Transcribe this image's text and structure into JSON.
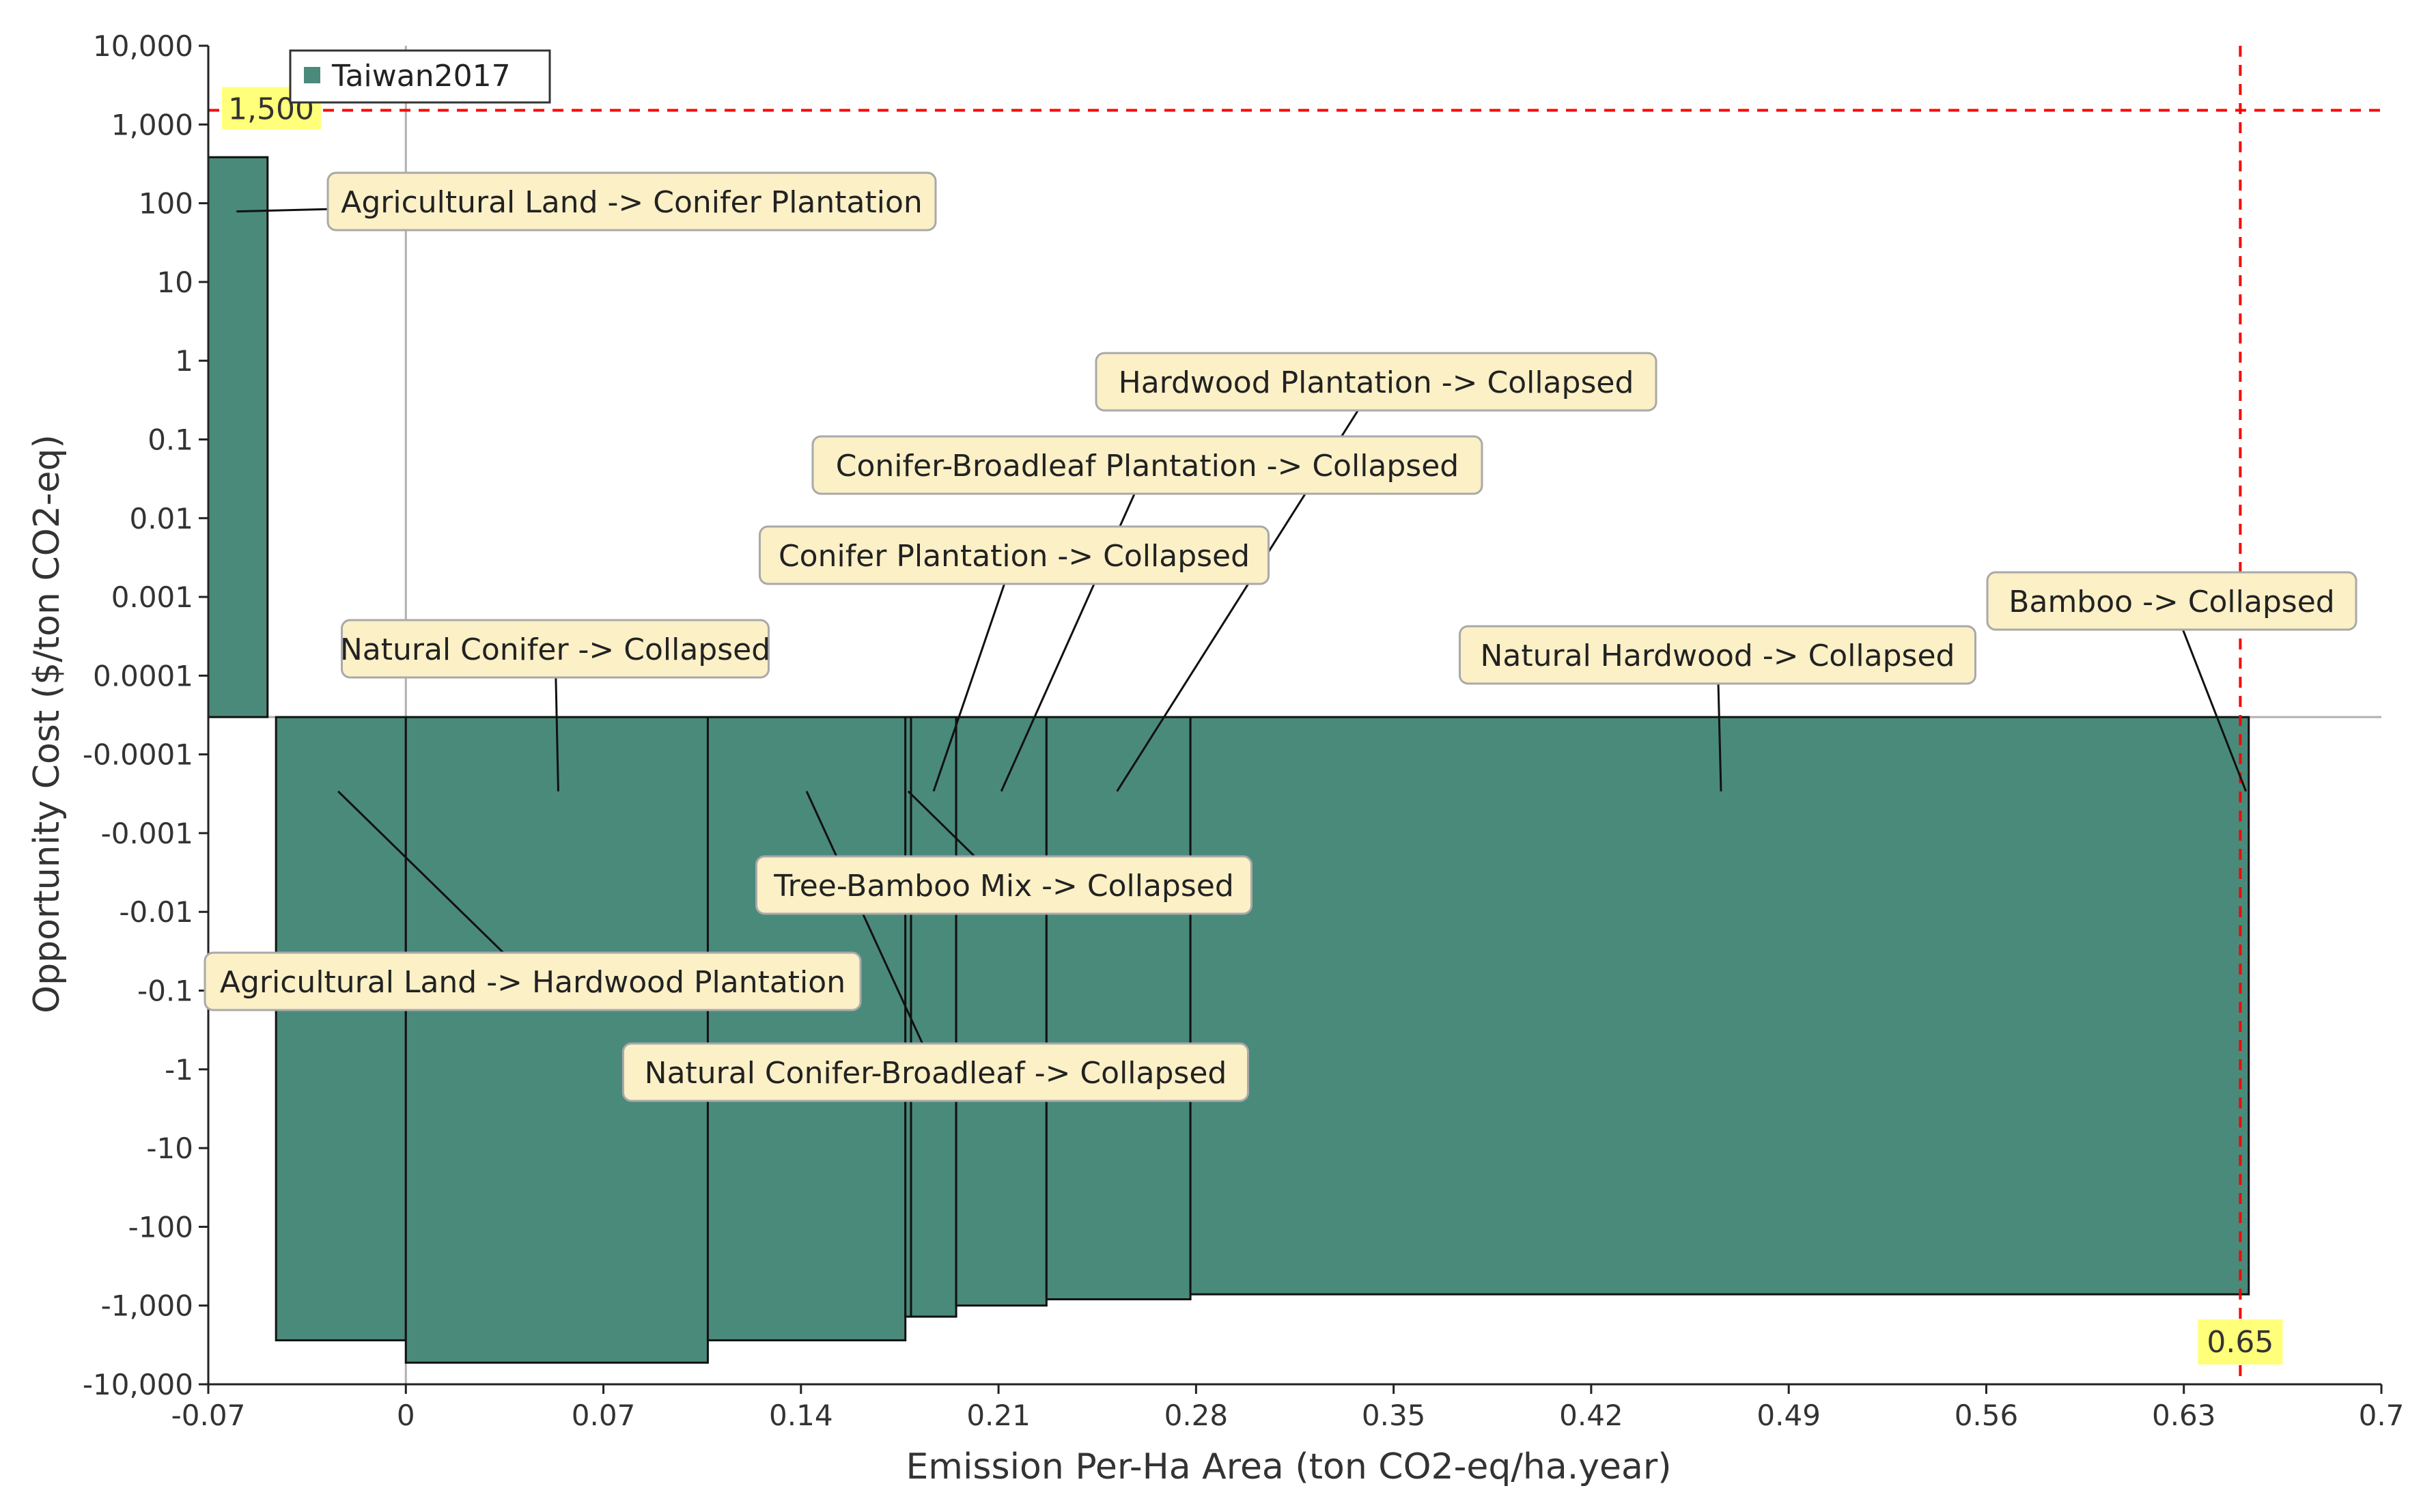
{
  "chart_data": {
    "type": "bar",
    "subtype": "variable-width cost curve (symlog y axis)",
    "xlabel": "Emission Per-Ha Area (ton CO2-eq/ha.year)",
    "ylabel": "Opportunity Cost ($/ton CO2-eq)",
    "xlim": [
      -0.07,
      0.7
    ],
    "x_ticks": [
      "-0.07",
      "0",
      "0.07",
      "0.14",
      "0.21",
      "0.28",
      "0.35",
      "0.42",
      "0.49",
      "0.56",
      "0.63",
      "0.7"
    ],
    "y_scale": "symlog",
    "y_ticks": [
      "10,000",
      "1,000",
      "100",
      "10",
      "1",
      "0.1",
      "0.01",
      "0.001",
      "0.0001",
      "-0.0001",
      "-0.001",
      "-0.01",
      "-0.1",
      "-1",
      "-10",
      "-100",
      "-1,000",
      "-10,000"
    ],
    "legend": {
      "position": "top-left",
      "entries": [
        "Taiwan2017"
      ]
    },
    "bar_color": "#4a8a7b",
    "series": [
      {
        "name": "Taiwan2017",
        "bars": [
          {
            "x0": -0.07,
            "x1": -0.049,
            "value": 350
          },
          {
            "x0": -0.046,
            "x1": 0.0,
            "value": -2500
          },
          {
            "x0": 0.0,
            "x1": 0.107,
            "value": -5000
          },
          {
            "x0": 0.107,
            "x1": 0.177,
            "value": -2500
          },
          {
            "x0": 0.177,
            "x1": 0.179,
            "value": -1200
          },
          {
            "x0": 0.179,
            "x1": 0.195,
            "value": -1200
          },
          {
            "x0": 0.195,
            "x1": 0.227,
            "value": -850
          },
          {
            "x0": 0.227,
            "x1": 0.278,
            "value": -700
          },
          {
            "x0": 0.278,
            "x1": 0.653,
            "value": -600
          }
        ]
      }
    ],
    "annotations": [
      {
        "text": "Agricultural Land -> Conifer Plantation",
        "point": [
          -0.06,
          65
        ]
      },
      {
        "text": "Natural Conifer -> Collapsed",
        "point": [
          0.054,
          -5e-05
        ]
      },
      {
        "text": "Agricultural Land -> Hardwood Plantation",
        "point": [
          -0.024,
          -3e-05
        ]
      },
      {
        "text": "Tree-Bamboo Mix -> Collapsed",
        "point": [
          0.178,
          -4e-05
        ]
      },
      {
        "text": "Natural Conifer-Broadleaf -> Collapsed",
        "point": [
          0.142,
          -4e-05
        ]
      },
      {
        "text": "Conifer Plantation -> Collapsed",
        "point": [
          0.187,
          -4e-05
        ]
      },
      {
        "text": "Conifer-Broadleaf Plantation -> Collapsed",
        "point": [
          0.211,
          -4e-05
        ]
      },
      {
        "text": "Hardwood Plantation -> Collapsed",
        "point": [
          0.252,
          -4e-05
        ]
      },
      {
        "text": "Natural Hardwood -> Collapsed",
        "point": [
          0.466,
          -4e-05
        ]
      },
      {
        "text": "Bamboo -> Collapsed",
        "point": [
          0.652,
          -3e-05
        ]
      }
    ],
    "reference_lines": [
      {
        "orientation": "horizontal",
        "value": 1500,
        "label": "1,500",
        "color": "#ff0000"
      },
      {
        "orientation": "vertical",
        "value": 0.65,
        "label": "0.65",
        "color": "#ff0000"
      }
    ],
    "grid": false
  }
}
